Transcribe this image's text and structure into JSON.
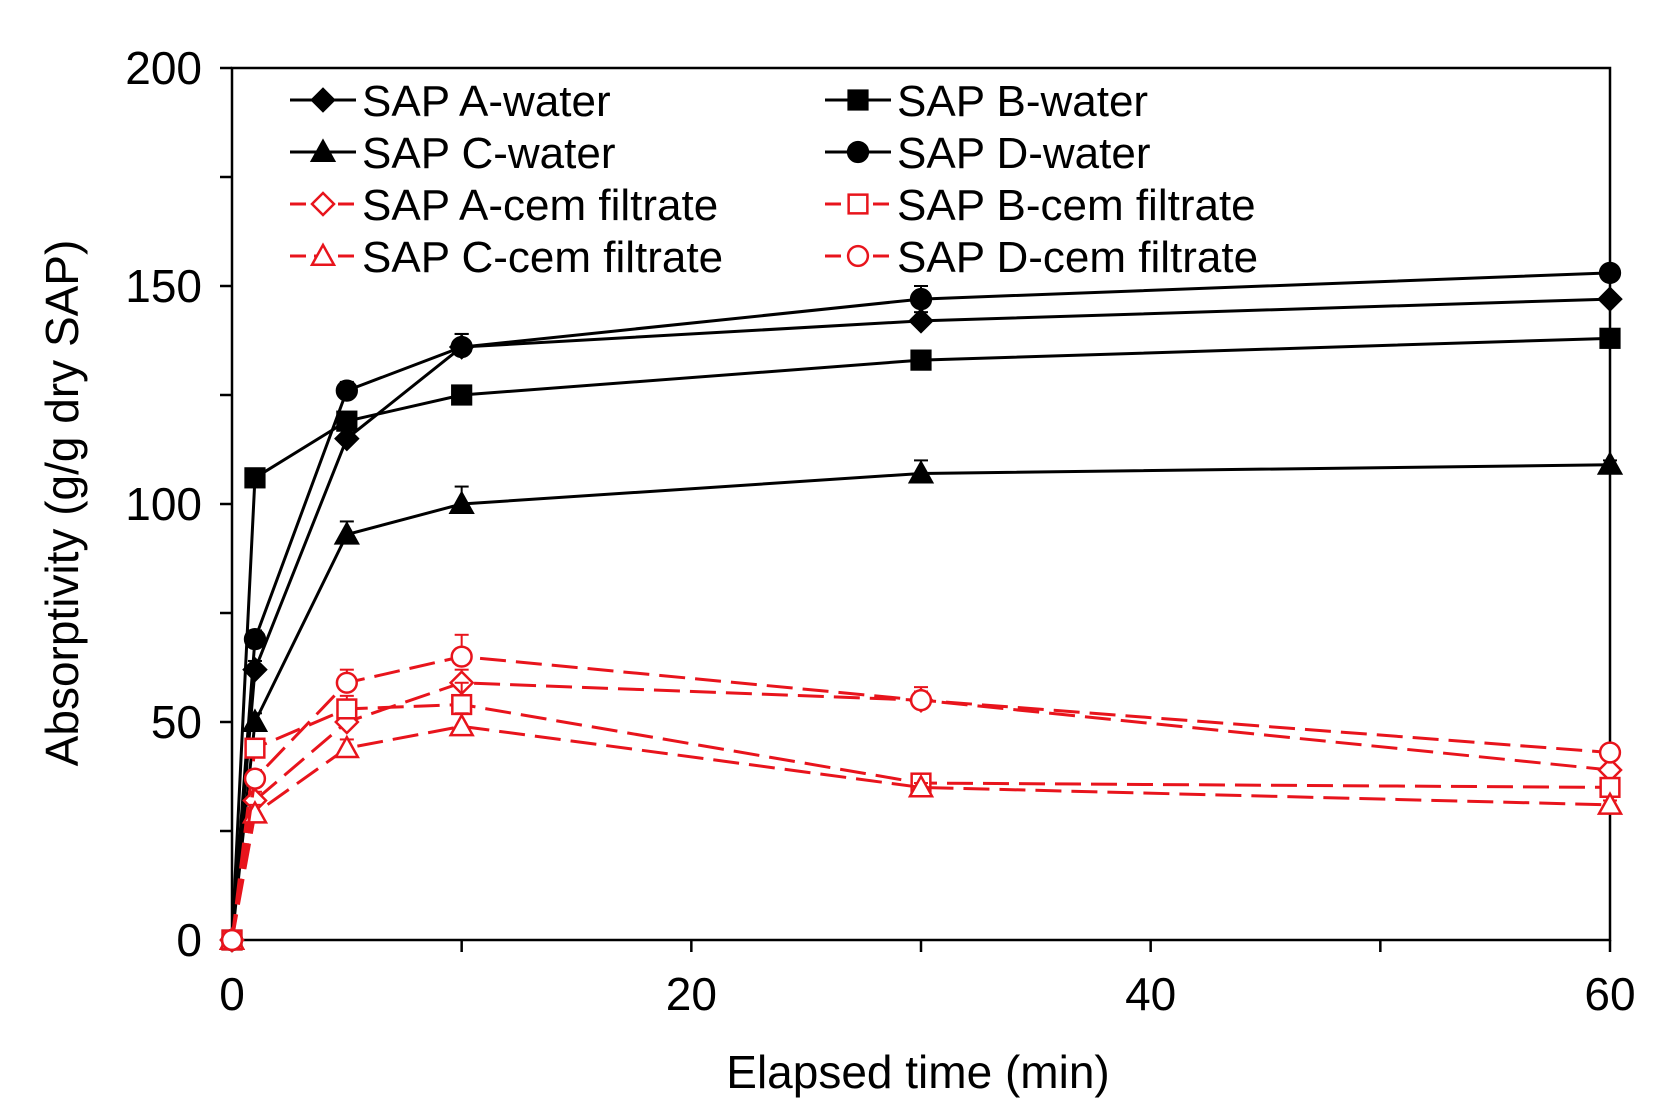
{
  "chart_data": {
    "type": "line",
    "title": "",
    "xlabel": "Elapsed time (min)",
    "ylabel": "Absorptivity (g/g dry SAP)",
    "xlim": [
      0,
      60
    ],
    "ylim": [
      0,
      200
    ],
    "xticks": [
      0,
      20,
      40,
      60
    ],
    "yticks": [
      0,
      50,
      100,
      150,
      200
    ],
    "x_minor_step": 10,
    "y_minor_step": 25,
    "grid": false,
    "legend_position": "top-left",
    "x": [
      0,
      1,
      5,
      10,
      30,
      60
    ],
    "series": [
      {
        "name": "SAP A-water",
        "marker": "diamond",
        "filled": true,
        "dashed": false,
        "color": "#000000",
        "values": [
          0,
          62,
          115,
          136,
          142,
          147
        ],
        "errors": [
          0,
          2,
          3,
          3,
          2,
          1
        ]
      },
      {
        "name": "SAP B-water",
        "marker": "square",
        "filled": true,
        "dashed": false,
        "color": "#000000",
        "values": [
          0,
          106,
          119,
          125,
          133,
          138
        ],
        "errors": [
          0,
          2,
          2,
          1,
          1,
          1
        ]
      },
      {
        "name": "SAP C-water",
        "marker": "triangle",
        "filled": true,
        "dashed": false,
        "color": "#000000",
        "values": [
          0,
          50,
          93,
          100,
          107,
          109
        ],
        "errors": [
          0,
          2,
          3,
          4,
          3,
          1
        ]
      },
      {
        "name": "SAP D-water",
        "marker": "circle",
        "filled": true,
        "dashed": false,
        "color": "#000000",
        "values": [
          0,
          69,
          126,
          136,
          147,
          153
        ],
        "errors": [
          0,
          2,
          2,
          3,
          3,
          1
        ]
      },
      {
        "name": "SAP A-cem filtrate",
        "marker": "diamond",
        "filled": false,
        "dashed": true,
        "color": "#e8141c",
        "values": [
          0,
          32,
          50,
          59,
          55,
          39
        ],
        "errors": [
          0,
          2,
          3,
          3,
          2,
          1
        ]
      },
      {
        "name": "SAP B-cem filtrate",
        "marker": "square",
        "filled": false,
        "dashed": true,
        "color": "#e8141c",
        "values": [
          0,
          44,
          53,
          54,
          36,
          35
        ],
        "errors": [
          0,
          2,
          3,
          5,
          1,
          1
        ]
      },
      {
        "name": "SAP C-cem filtrate",
        "marker": "triangle",
        "filled": false,
        "dashed": true,
        "color": "#e8141c",
        "values": [
          0,
          29,
          44,
          49,
          35,
          31
        ],
        "errors": [
          0,
          2,
          2,
          3,
          1,
          1
        ]
      },
      {
        "name": "SAP D-cem filtrate",
        "marker": "circle",
        "filled": false,
        "dashed": true,
        "color": "#e8141c",
        "values": [
          0,
          37,
          59,
          65,
          55,
          43
        ],
        "errors": [
          0,
          2,
          3,
          5,
          3,
          1
        ]
      }
    ]
  }
}
